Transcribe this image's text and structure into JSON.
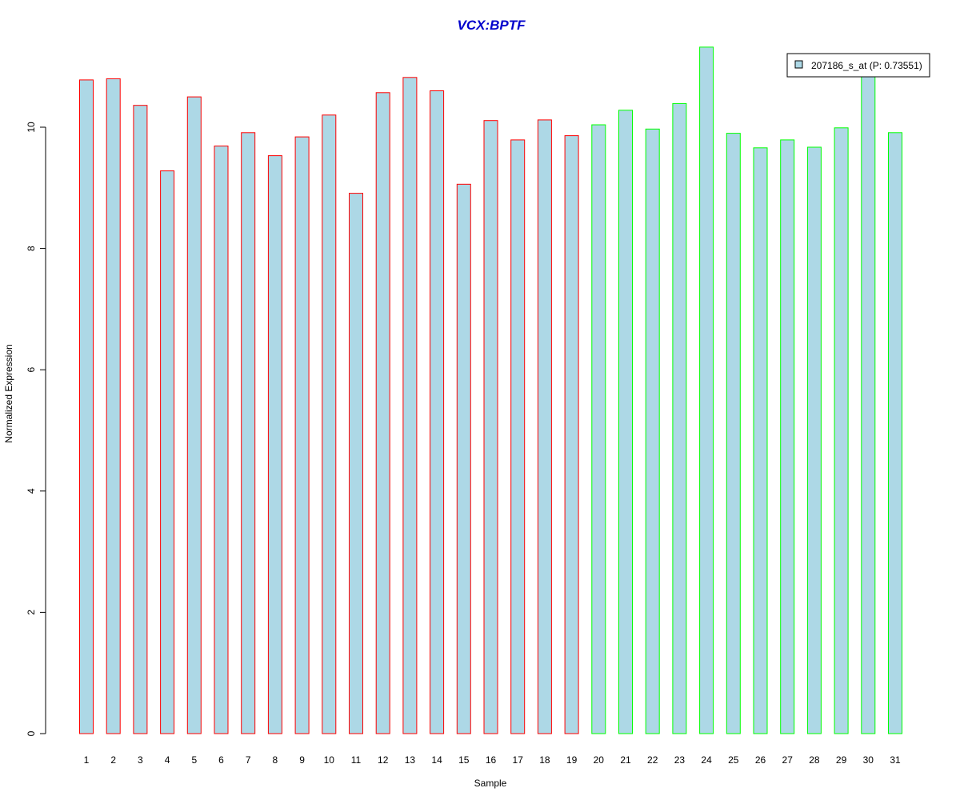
{
  "chart_data": {
    "type": "bar",
    "title": "VCX:BPTF",
    "xlabel": "Sample",
    "ylabel": "Normalized Expression",
    "categories": [
      "1",
      "2",
      "3",
      "4",
      "5",
      "6",
      "7",
      "8",
      "9",
      "10",
      "11",
      "12",
      "13",
      "14",
      "15",
      "16",
      "17",
      "18",
      "19",
      "20",
      "21",
      "22",
      "23",
      "24",
      "25",
      "26",
      "27",
      "28",
      "29",
      "30",
      "31"
    ],
    "series": [
      {
        "name": "207186_s_at (P: 0.73551)",
        "values": [
          10.78,
          10.8,
          10.36,
          9.28,
          10.5,
          9.69,
          9.91,
          9.53,
          9.84,
          10.2,
          8.91,
          10.57,
          10.82,
          10.6,
          9.06,
          10.11,
          9.79,
          10.12,
          9.86,
          10.04,
          10.28,
          9.97,
          10.39,
          11.32,
          9.9,
          9.66,
          9.79,
          9.67,
          9.99,
          10.96,
          9.91
        ]
      }
    ],
    "bar_fill": "#add8e6",
    "group_colors": {
      "group1": "#ff0000",
      "group2": "#00ff00"
    },
    "group_of_bar": [
      "group1",
      "group1",
      "group1",
      "group1",
      "group1",
      "group1",
      "group1",
      "group1",
      "group1",
      "group1",
      "group1",
      "group1",
      "group1",
      "group1",
      "group1",
      "group1",
      "group1",
      "group1",
      "group1",
      "group2",
      "group2",
      "group2",
      "group2",
      "group2",
      "group2",
      "group2",
      "group2",
      "group2",
      "group2",
      "group2",
      "group2"
    ],
    "title_color": "#0000cc",
    "ylim": [
      0,
      11.32
    ],
    "yticks": [
      0,
      2,
      4,
      6,
      8,
      10
    ],
    "grid": false,
    "legend_position": "top-right"
  }
}
